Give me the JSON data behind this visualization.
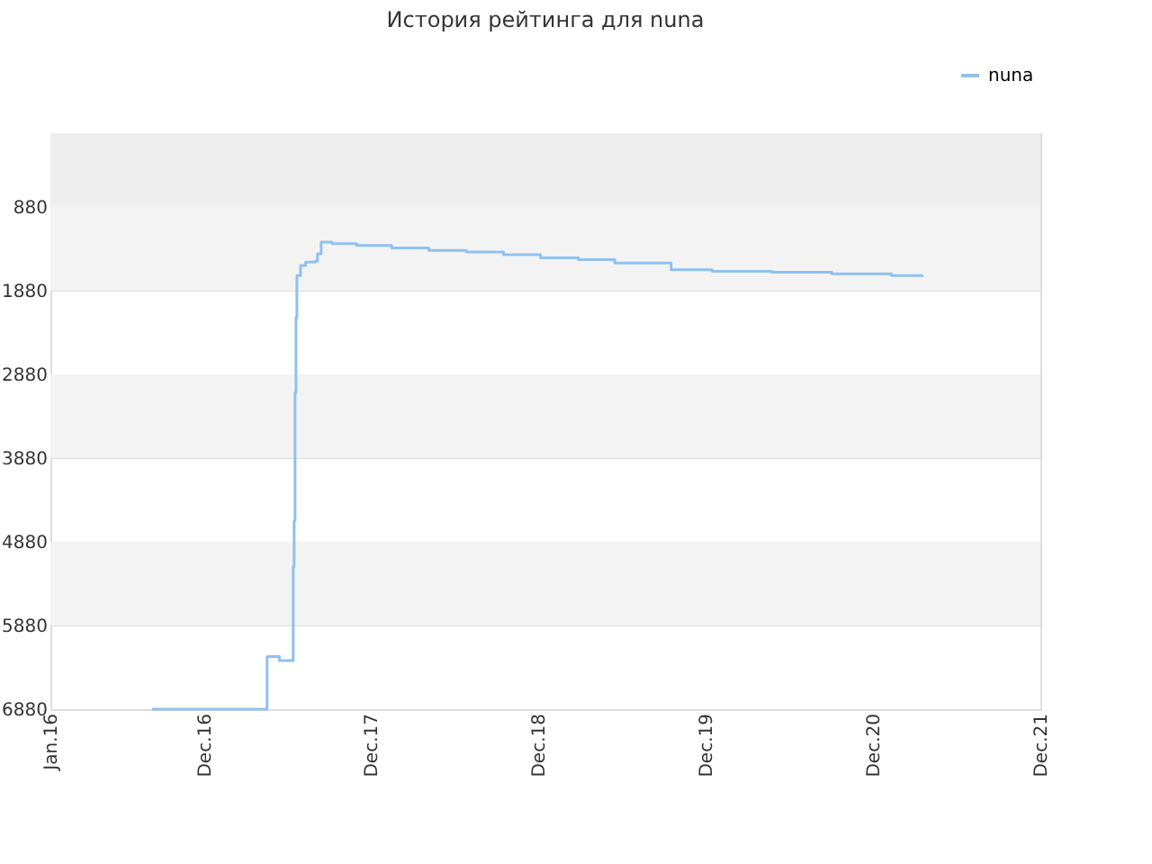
{
  "chart_data": {
    "type": "step",
    "title": "История рейтинга для nuna",
    "x": [
      "2016-08-10",
      "2017-04-18",
      "2017-05-15",
      "2017-06-14",
      "2017-06-16",
      "2017-06-18",
      "2017-06-20",
      "2017-06-22",
      "2017-06-30",
      "2017-07-11",
      "2017-08-01",
      "2017-08-06",
      "2017-08-14",
      "2017-09-07",
      "2017-10-31",
      "2018-01-15",
      "2018-04-06",
      "2018-06-27",
      "2018-09-16",
      "2018-12-06",
      "2019-02-27",
      "2019-05-17",
      "2019-09-17",
      "2019-12-16",
      "2020-04-24",
      "2020-09-02",
      "2021-01-10",
      "2021-03-18"
    ],
    "series": [
      {
        "name": "nuna",
        "color": "#8fc1f0",
        "values": [
          6880,
          6250,
          6300,
          5180,
          4630,
          3100,
          2200,
          1700,
          1580,
          1540,
          1530,
          1440,
          1300,
          1320,
          1340,
          1370,
          1400,
          1420,
          1450,
          1490,
          1510,
          1550,
          1630,
          1650,
          1660,
          1680,
          1700,
          1720
        ]
      }
    ],
    "xlim": [
      "2016-01-01",
      "2021-12-01"
    ],
    "xticks": [
      {
        "value": "2016-01-01",
        "label": "Jan.16"
      },
      {
        "value": "2016-12-01",
        "label": "Dec.16"
      },
      {
        "value": "2017-12-01",
        "label": "Dec.17"
      },
      {
        "value": "2018-12-01",
        "label": "Dec.18"
      },
      {
        "value": "2019-12-01",
        "label": "Dec.19"
      },
      {
        "value": "2020-12-01",
        "label": "Dec.20"
      },
      {
        "value": "2021-12-01",
        "label": "Dec.21"
      }
    ],
    "ylim": [
      6880,
      0
    ],
    "yticks": [
      880,
      1880,
      2880,
      3880,
      4880,
      5880,
      6880
    ],
    "bands": [
      {
        "axis": "y",
        "from": 0,
        "to": 880,
        "color": "#eeeeee"
      },
      {
        "axis": "y",
        "from": 880,
        "to": 1880,
        "color": "#f3f3f3"
      },
      {
        "axis": "y",
        "from": 2880,
        "to": 3880,
        "color": "#f3f3f3"
      },
      {
        "axis": "y",
        "from": 4880,
        "to": 5880,
        "color": "#f3f3f3"
      }
    ],
    "grid": "y",
    "legend": "top right",
    "marker": "none",
    "line_style": "solid"
  }
}
